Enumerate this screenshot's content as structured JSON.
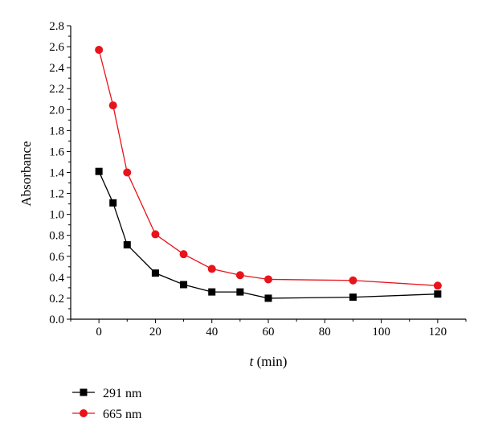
{
  "chart_data": {
    "type": "line",
    "xlabel_italic": "t",
    "xlabel_unit": "(min)",
    "ylabel": "Absorbance",
    "xlim": [
      -10,
      130
    ],
    "ylim": [
      0.0,
      2.8
    ],
    "xticks": [
      "0",
      "20",
      "40",
      "60",
      "80",
      "100",
      "120"
    ],
    "yticks": [
      "0.0",
      "0.2",
      "0.4",
      "0.6",
      "0.8",
      "1.0",
      "1.2",
      "1.4",
      "1.6",
      "1.8",
      "2.0",
      "2.2",
      "2.4",
      "2.6",
      "2.8"
    ],
    "x": [
      0,
      5,
      10,
      20,
      30,
      40,
      50,
      60,
      90,
      120
    ],
    "series": [
      {
        "name": "291 nm",
        "color": "#000000",
        "marker": "square",
        "values": [
          1.41,
          1.11,
          0.71,
          0.44,
          0.33,
          0.26,
          0.26,
          0.2,
          0.21,
          0.24
        ]
      },
      {
        "name": "665 nm",
        "color": "#e8141b",
        "marker": "circle",
        "values": [
          2.57,
          2.04,
          1.4,
          0.81,
          0.62,
          0.48,
          0.42,
          0.38,
          0.37,
          0.32
        ]
      }
    ],
    "grid": false,
    "legend_position": "bottom-left"
  }
}
